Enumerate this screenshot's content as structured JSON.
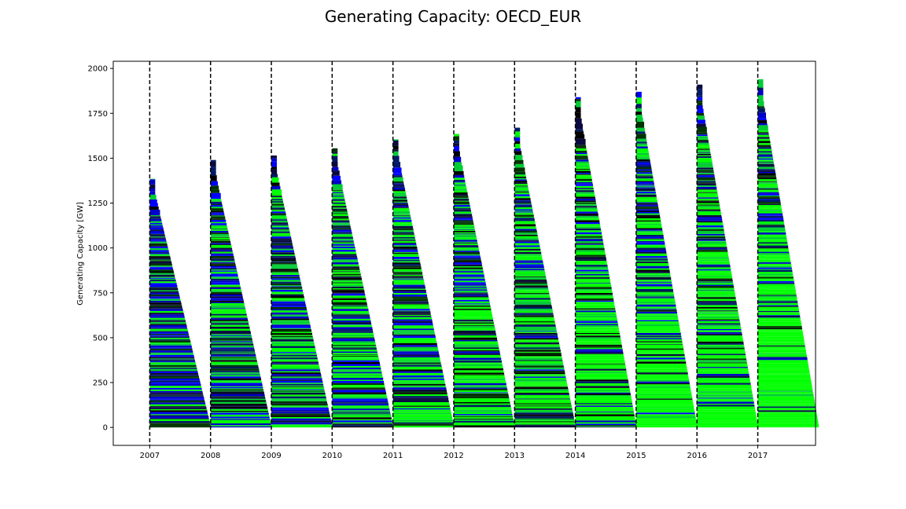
{
  "chart_data": {
    "type": "bar",
    "title": "Generating Capacity: OECD_EUR",
    "xlabel": "",
    "ylabel": "Generating Capacity [GW]",
    "ylim": [
      -100,
      2040
    ],
    "xlim": [
      2006.4,
      2017.95
    ],
    "yticks": [
      0,
      250,
      500,
      750,
      1000,
      1250,
      1500,
      1750,
      2000
    ],
    "xticks": [
      2007,
      2008,
      2009,
      2010,
      2011,
      2012,
      2013,
      2014,
      2015,
      2016,
      2017
    ],
    "grid": false,
    "vertical_dashed_lines_at": [
      2007,
      2008,
      2009,
      2010,
      2011,
      2012,
      2013,
      2014,
      2015,
      2016,
      2017
    ],
    "bar_colors": [
      "#0000c8",
      "#000000",
      "#001a66",
      "#0000ff",
      "#00ff00",
      "#003300",
      "#0a0a40",
      "#00cc33"
    ],
    "series": [
      {
        "year": 2007,
        "total_capacity": 1385
      },
      {
        "year": 2008,
        "total_capacity": 1490
      },
      {
        "year": 2009,
        "total_capacity": 1515
      },
      {
        "year": 2010,
        "total_capacity": 1555
      },
      {
        "year": 2011,
        "total_capacity": 1605
      },
      {
        "year": 2012,
        "total_capacity": 1635
      },
      {
        "year": 2013,
        "total_capacity": 1670
      },
      {
        "year": 2014,
        "total_capacity": 1840
      },
      {
        "year": 2015,
        "total_capacity": 1870
      },
      {
        "year": 2016,
        "total_capacity": 1910
      },
      {
        "year": 2017,
        "total_capacity": 1940
      }
    ]
  }
}
